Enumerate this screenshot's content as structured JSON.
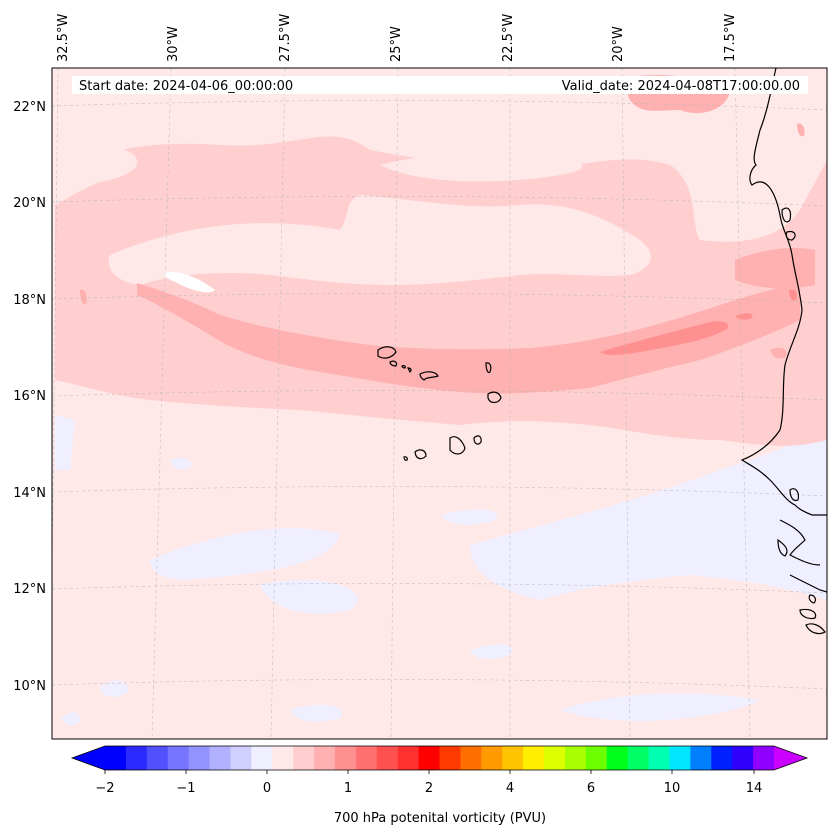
{
  "map": {
    "header": {
      "start_date": "Start date: 2024-04-06_00:00:00",
      "valid_date": "Valid_date: 2024-04-08T17:00:00.00"
    },
    "lon_labels": [
      "32.5°W",
      "30°W",
      "27.5°W",
      "25°W",
      "22.5°W",
      "20°W",
      "17.5°W"
    ],
    "lat_labels": [
      "22°N",
      "20°N",
      "18°N",
      "16°N",
      "14°N",
      "12°N",
      "10°N"
    ]
  },
  "colorbar": {
    "label": "700 hPa potenital vorticity (PVU)",
    "tick_labels": [
      "−2",
      "−1",
      "0",
      "1",
      "2",
      "4",
      "6",
      "10",
      "14"
    ],
    "colors": [
      "#0000ff",
      "#2b2bff",
      "#5050ff",
      "#7575ff",
      "#9393ff",
      "#b1b1ff",
      "#d0d0ff",
      "#efefff",
      "#ffe8e8",
      "#ffcfcf",
      "#ffb0b0",
      "#ff9090",
      "#ff7070",
      "#ff5050",
      "#ff3030",
      "#ff0000",
      "#ff3a00",
      "#ff6f00",
      "#ff9a00",
      "#ffc400",
      "#ffee00",
      "#dcff00",
      "#a8ff00",
      "#6cff00",
      "#00ff1a",
      "#00ff66",
      "#00ffb0",
      "#00e6ff",
      "#0080ff",
      "#0020ff",
      "#3000ff",
      "#9000ff"
    ],
    "extend_min_color": "#0000ff",
    "extend_max_color": "#cc00ff"
  },
  "fill_colors": {
    "very_light_pink": "#ffe8e8",
    "light_pink": "#ffcfcf",
    "pink": "#ffb0b0",
    "salmon": "#ff9090",
    "lavender": "#efefff"
  }
}
